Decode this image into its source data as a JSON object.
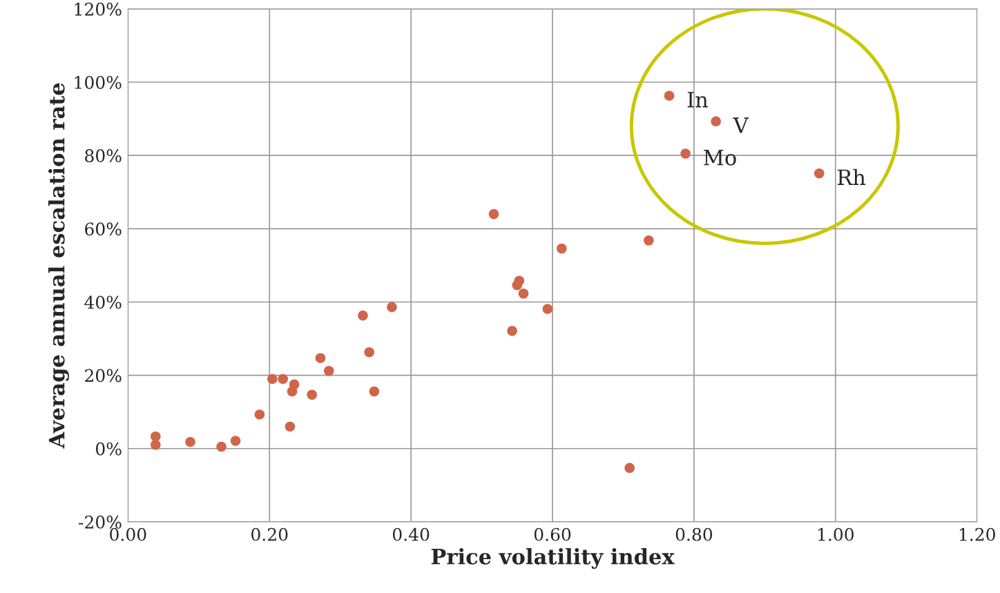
{
  "chart_data": {
    "type": "scatter",
    "xlabel": "Price volatility index",
    "ylabel": "Average annual escalation rate",
    "x": [
      0.039,
      0.039,
      0.088,
      0.132,
      0.152,
      0.186,
      0.204,
      0.219,
      0.232,
      0.235,
      0.229,
      0.26,
      0.272,
      0.284,
      0.332,
      0.341,
      0.348,
      0.373,
      0.517,
      0.543,
      0.55,
      0.553,
      0.559,
      0.593,
      0.613,
      0.709,
      0.736,
      0.765,
      0.788,
      0.831,
      0.977
    ],
    "values": [
      3.3,
      1.0,
      1.8,
      0.5,
      2.1,
      9.3,
      19,
      19,
      15.6,
      17.5,
      6.0,
      14.7,
      24.7,
      21.2,
      36.3,
      26.3,
      15.6,
      38.6,
      64,
      32.1,
      44.6,
      45.8,
      42.3,
      38.1,
      54.6,
      -5.3,
      56.8,
      96.3,
      80.5,
      89.3,
      75.1
    ],
    "color": "#d0654a",
    "marker": "circle",
    "grid": true,
    "xlim": [
      0,
      1.2
    ],
    "xticks": [
      {
        "value": 0,
        "label": "0.00"
      },
      {
        "value": 0.2,
        "label": "0.20"
      },
      {
        "value": 0.4,
        "label": "0.40"
      },
      {
        "value": 0.6,
        "label": "0.60"
      },
      {
        "value": 0.8,
        "label": "0.80"
      },
      {
        "value": 1.0,
        "label": "1.00"
      },
      {
        "value": 1.2,
        "label": "1.20"
      }
    ],
    "ylim": [
      -20,
      120
    ],
    "yticks": [
      {
        "value": -20,
        "label": "-20%"
      },
      {
        "value": 0,
        "label": "0%"
      },
      {
        "value": 20,
        "label": "20%"
      },
      {
        "value": 40,
        "label": "40%"
      },
      {
        "value": 60,
        "label": "60%"
      },
      {
        "value": 80,
        "label": "80%"
      },
      {
        "value": 100,
        "label": "100%"
      },
      {
        "value": 120,
        "label": "120%"
      }
    ],
    "annotations": [
      {
        "text": "In",
        "x": 0.765,
        "y": 96.3
      },
      {
        "text": "V",
        "x": 0.831,
        "y": 89.3
      },
      {
        "text": "Mo",
        "x": 0.788,
        "y": 80.5
      },
      {
        "text": "Rh",
        "x": 0.977,
        "y": 75.1
      }
    ]
  }
}
